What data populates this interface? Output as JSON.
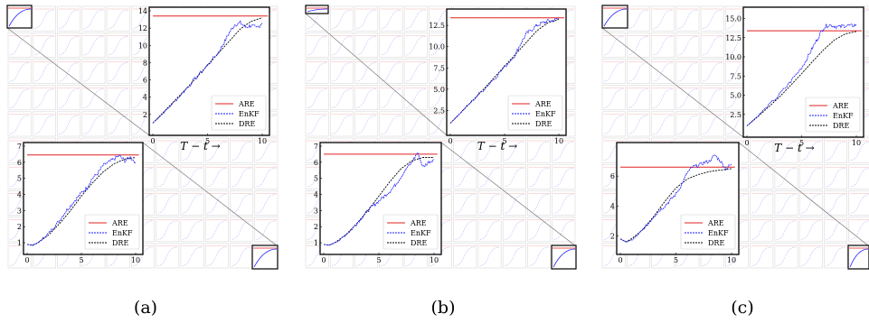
{
  "panels": [
    {
      "caption": "(a)",
      "top": {
        "xlabel": "T − t →",
        "xticks": [
          0,
          5,
          10
        ],
        "yticks": [
          2,
          4,
          6,
          8,
          10,
          12,
          14
        ],
        "ylim": [
          0,
          14
        ]
      },
      "bottom": {
        "xticks": [
          0,
          5,
          10
        ],
        "yticks": [
          1,
          2,
          3,
          4,
          5,
          6,
          7
        ],
        "ylim": [
          0.5,
          7
        ]
      }
    },
    {
      "caption": "(b)",
      "top": {
        "xlabel": "T − t →",
        "xticks": [
          0,
          5,
          10
        ],
        "yticks": [
          "2.5",
          "5.0",
          "7.5",
          "10.0",
          "12.5"
        ],
        "ylim": [
          0,
          14
        ]
      },
      "bottom": {
        "xticks": [
          0,
          5,
          10
        ],
        "yticks": [
          1,
          2,
          3,
          4,
          5,
          6,
          7
        ],
        "ylim": [
          0.5,
          7
        ]
      }
    },
    {
      "caption": "(c)",
      "top": {
        "xlabel": "T − t →",
        "xticks": [
          0,
          5,
          10
        ],
        "yticks": [
          "2.5",
          "5.0",
          "7.5",
          "10.0",
          "12.5",
          "15.0"
        ],
        "ylim": [
          0,
          16
        ]
      },
      "bottom": {
        "xticks": [
          0,
          5,
          10
        ],
        "yticks": [
          2,
          4,
          6
        ],
        "ylim": [
          1,
          8
        ]
      }
    }
  ],
  "legend": [
    "ARE",
    "EnKF",
    "DRE"
  ],
  "colors": {
    "ARE": "#e02020",
    "EnKF": "#1a1aff",
    "DRE": "#000000"
  },
  "chart_data": [
    {
      "type": "line",
      "panel": "a-top",
      "xlim": [
        0,
        10
      ],
      "ylim": [
        0,
        14
      ],
      "series": [
        {
          "name": "ARE",
          "x": [
            0,
            10.5
          ],
          "y": [
            13.4,
            13.4
          ]
        },
        {
          "name": "DRE",
          "x": [
            0,
            1,
            2,
            3,
            4,
            5,
            6,
            7,
            8,
            9,
            10
          ],
          "y": [
            1.0,
            2.3,
            3.6,
            4.9,
            6.3,
            7.7,
            9.1,
            10.5,
            11.9,
            12.8,
            13.2
          ]
        },
        {
          "name": "EnKF",
          "x": [
            0,
            1,
            2,
            3,
            4,
            5,
            6,
            6.5,
            7,
            7.5,
            8,
            8.5,
            9,
            9.5,
            10
          ],
          "y": [
            1.0,
            2.2,
            3.5,
            4.9,
            6.3,
            7.7,
            9.2,
            10.3,
            11.5,
            12.4,
            12.6,
            12.1,
            12.3,
            12.0,
            12.6
          ]
        }
      ]
    },
    {
      "type": "line",
      "panel": "a-bottom",
      "xlim": [
        0,
        10
      ],
      "ylim": [
        0.5,
        7
      ],
      "series": [
        {
          "name": "ARE",
          "x": [
            0,
            10.3
          ],
          "y": [
            6.45,
            6.45
          ]
        },
        {
          "name": "DRE",
          "x": [
            0,
            0.5,
            1,
            2,
            3,
            4,
            5,
            6,
            7,
            8,
            9,
            10
          ],
          "y": [
            0.9,
            0.85,
            1.0,
            1.5,
            2.2,
            3.0,
            3.9,
            4.7,
            5.4,
            5.9,
            6.2,
            6.3
          ]
        },
        {
          "name": "EnKF",
          "x": [
            0,
            0.5,
            1,
            1.5,
            2,
            2.5,
            3,
            3.5,
            4,
            4.5,
            5,
            5.5,
            6,
            6.5,
            7,
            7.5,
            8,
            8.5,
            9,
            9.5,
            10
          ],
          "y": [
            0.9,
            0.85,
            1.0,
            1.3,
            1.6,
            2.0,
            2.4,
            2.9,
            3.3,
            3.7,
            4.1,
            4.4,
            5.0,
            5.3,
            5.8,
            6.0,
            6.2,
            6.4,
            6.1,
            6.3,
            6.0
          ]
        }
      ]
    },
    {
      "type": "line",
      "panel": "b-top",
      "xlim": [
        0,
        10
      ],
      "ylim": [
        0,
        14
      ],
      "series": [
        {
          "name": "ARE",
          "x": [
            0,
            10.5
          ],
          "y": [
            13.4,
            13.4
          ]
        },
        {
          "name": "DRE",
          "x": [
            0,
            1,
            2,
            3,
            4,
            5,
            6,
            7,
            8,
            9,
            10
          ],
          "y": [
            1.0,
            2.3,
            3.6,
            4.9,
            6.3,
            7.7,
            9.1,
            10.5,
            11.9,
            12.8,
            13.2
          ]
        },
        {
          "name": "EnKF",
          "x": [
            0,
            1,
            2,
            3,
            4,
            5,
            6,
            6.5,
            7,
            7.5,
            8,
            8.5,
            9,
            9.5,
            10
          ],
          "y": [
            1.0,
            2.3,
            3.6,
            4.9,
            6.2,
            7.6,
            9.1,
            10.4,
            11.5,
            12.0,
            12.5,
            12.8,
            13.0,
            13.1,
            13.3
          ]
        }
      ]
    },
    {
      "type": "line",
      "panel": "b-bottom",
      "xlim": [
        0,
        10
      ],
      "ylim": [
        0.5,
        7
      ],
      "series": [
        {
          "name": "ARE",
          "x": [
            0,
            10.3
          ],
          "y": [
            6.5,
            6.5
          ]
        },
        {
          "name": "DRE",
          "x": [
            0,
            0.5,
            1,
            2,
            3,
            4,
            5,
            6,
            7,
            8,
            9,
            10
          ],
          "y": [
            0.9,
            0.85,
            1.0,
            1.5,
            2.2,
            3.0,
            3.9,
            4.8,
            5.6,
            6.1,
            6.3,
            6.3
          ]
        },
        {
          "name": "EnKF",
          "x": [
            0,
            0.5,
            1,
            1.5,
            2,
            2.5,
            3,
            3.5,
            4,
            4.5,
            5,
            5.5,
            6,
            6.5,
            7,
            7.5,
            8,
            8.5,
            9,
            9.5,
            10
          ],
          "y": [
            0.9,
            0.85,
            1.0,
            1.2,
            1.5,
            1.8,
            2.2,
            2.6,
            3.0,
            3.3,
            3.6,
            3.9,
            4.2,
            4.6,
            5.1,
            5.6,
            6.0,
            6.6,
            5.7,
            6.0,
            6.2
          ]
        }
      ]
    },
    {
      "type": "line",
      "panel": "c-top",
      "xlim": [
        0,
        10
      ],
      "ylim": [
        0,
        16
      ],
      "series": [
        {
          "name": "ARE",
          "x": [
            0,
            10.5
          ],
          "y": [
            13.4,
            13.4
          ]
        },
        {
          "name": "DRE",
          "x": [
            0,
            1,
            2,
            3,
            4,
            5,
            6,
            7,
            8,
            9,
            10
          ],
          "y": [
            1.0,
            2.2,
            3.5,
            4.8,
            6.3,
            7.8,
            9.4,
            10.9,
            12.2,
            13.0,
            13.3
          ]
        },
        {
          "name": "EnKF",
          "x": [
            0,
            1,
            2,
            3,
            4,
            5,
            5.5,
            6,
            6.5,
            7,
            7.5,
            8,
            8.5,
            9,
            9.5,
            10
          ],
          "y": [
            1.0,
            2.3,
            3.7,
            5.1,
            6.8,
            8.6,
            9.8,
            11.2,
            12.5,
            13.8,
            14.2,
            14.0,
            13.9,
            14.1,
            14.0,
            14.2
          ]
        }
      ]
    },
    {
      "type": "line",
      "panel": "c-bottom",
      "xlim": [
        0,
        10
      ],
      "ylim": [
        1,
        8
      ],
      "series": [
        {
          "name": "ARE",
          "x": [
            0,
            10.3
          ],
          "y": [
            6.6,
            6.6
          ]
        },
        {
          "name": "DRE",
          "x": [
            0,
            0.5,
            1,
            2,
            3,
            4,
            5,
            6,
            7,
            8,
            9,
            10
          ],
          "y": [
            1.8,
            1.6,
            1.8,
            2.4,
            3.3,
            4.3,
            5.2,
            5.8,
            6.1,
            6.3,
            6.4,
            6.5
          ]
        },
        {
          "name": "EnKF",
          "x": [
            0,
            0.5,
            1,
            1.5,
            2,
            2.5,
            3,
            3.5,
            4,
            4.5,
            5,
            5.5,
            6,
            6.5,
            7,
            7.5,
            8,
            8.5,
            9,
            9.5,
            10
          ],
          "y": [
            1.8,
            1.6,
            1.7,
            2.0,
            2.4,
            2.8,
            3.3,
            3.7,
            4.0,
            4.4,
            4.8,
            5.4,
            6.2,
            6.6,
            6.7,
            6.9,
            7.0,
            7.4,
            7.0,
            6.5,
            6.8
          ]
        }
      ]
    }
  ]
}
